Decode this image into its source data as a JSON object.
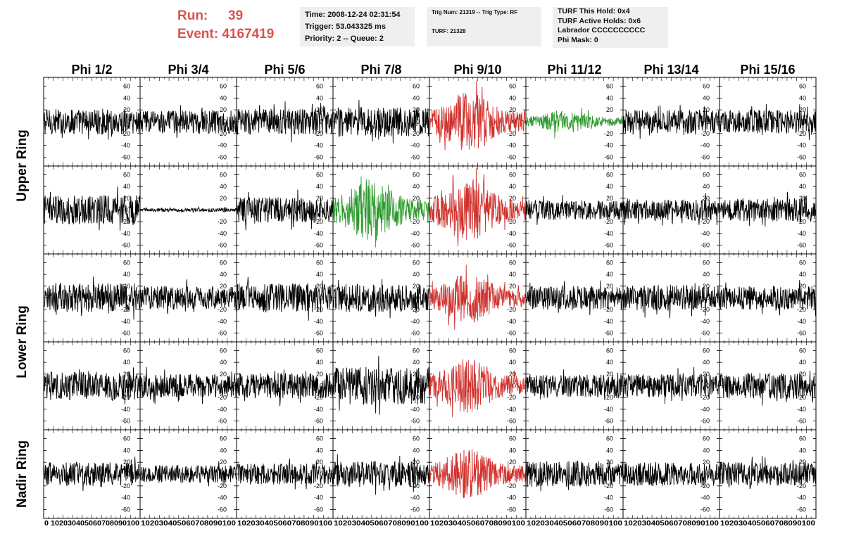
{
  "header": {
    "run_label": "Run:",
    "run_value": "39",
    "event_label": "Event:",
    "event_value": "4167419"
  },
  "info_box_1": {
    "time": "Time: 2008-12-24 02:31:54",
    "trigger": "Trigger: 53.043325 ms",
    "priority": "Priority: 2 -- Queue: 2"
  },
  "info_box_2": {
    "trig": "Trig Num: 21319 -- Trig Type: RF",
    "turf": "TURF: 21328"
  },
  "info_box_3": {
    "this_hold": "TURF This Hold: 0x4",
    "active_holds": "TURF Active Holds: 0x6",
    "labrador": "Labrador CCCCCCCCCC",
    "phi_mask": "Phi Mask: 0"
  },
  "colors": {
    "normal_trace": "#000000",
    "triggered_red": "#d0312d",
    "triggered_green": "#2e9a2e",
    "header_red": "#d9534f",
    "info_bg": "#efefef"
  },
  "chart_data": {
    "type": "line",
    "columns": [
      "Phi 1/2",
      "Phi 3/4",
      "Phi 5/6",
      "Phi 7/8",
      "Phi 9/10",
      "Phi 11/12",
      "Phi 13/14",
      "Phi 15/16"
    ],
    "rows": [
      "Upper Ring",
      "Lower Ring",
      "Nadir Ring"
    ],
    "sub_rows_per_ring": [
      2,
      2,
      1
    ],
    "y_ticks": [
      -60,
      -40,
      -20,
      0,
      20,
      40,
      60
    ],
    "ylim": [
      -75,
      75
    ],
    "x_ticks": [
      0,
      10,
      20,
      30,
      40,
      50,
      60,
      70,
      80,
      90,
      100
    ],
    "xlim": [
      0,
      100
    ],
    "x_tick_labels_panel1": "0 102030405060708090100",
    "x_tick_labels": "102030405060708090100",
    "x_tick_labels_last": "102030405060708090100",
    "grid": false,
    "panels": [
      {
        "row": 0,
        "col": 0,
        "color": "black",
        "amp": 22
      },
      {
        "row": 0,
        "col": 1,
        "color": "black",
        "amp": 20
      },
      {
        "row": 0,
        "col": 2,
        "color": "black",
        "amp": 22
      },
      {
        "row": 0,
        "col": 3,
        "color": "black",
        "amp": 25
      },
      {
        "row": 0,
        "col": 4,
        "color": "red",
        "amp": 38
      },
      {
        "row": 0,
        "col": 5,
        "color": "green",
        "amp": 15
      },
      {
        "row": 0,
        "col": 6,
        "color": "black",
        "amp": 20
      },
      {
        "row": 0,
        "col": 7,
        "color": "black",
        "amp": 20
      },
      {
        "row": 1,
        "col": 0,
        "color": "black",
        "amp": 25
      },
      {
        "row": 1,
        "col": 1,
        "color": "black",
        "amp": 3
      },
      {
        "row": 1,
        "col": 2,
        "color": "black",
        "amp": 22
      },
      {
        "row": 1,
        "col": 3,
        "color": "green",
        "amp": 40
      },
      {
        "row": 1,
        "col": 4,
        "color": "red",
        "amp": 40
      },
      {
        "row": 1,
        "col": 5,
        "color": "black",
        "amp": 17
      },
      {
        "row": 1,
        "col": 6,
        "color": "black",
        "amp": 18
      },
      {
        "row": 1,
        "col": 7,
        "color": "black",
        "amp": 20
      },
      {
        "row": 2,
        "col": 0,
        "color": "black",
        "amp": 25
      },
      {
        "row": 2,
        "col": 1,
        "color": "black",
        "amp": 20
      },
      {
        "row": 2,
        "col": 2,
        "color": "black",
        "amp": 25
      },
      {
        "row": 2,
        "col": 3,
        "color": "black",
        "amp": 24
      },
      {
        "row": 2,
        "col": 4,
        "color": "red",
        "amp": 33
      },
      {
        "row": 2,
        "col": 5,
        "color": "black",
        "amp": 20
      },
      {
        "row": 2,
        "col": 6,
        "color": "black",
        "amp": 22
      },
      {
        "row": 2,
        "col": 7,
        "color": "black",
        "amp": 20
      },
      {
        "row": 3,
        "col": 0,
        "color": "black",
        "amp": 25
      },
      {
        "row": 3,
        "col": 1,
        "color": "black",
        "amp": 20
      },
      {
        "row": 3,
        "col": 2,
        "color": "black",
        "amp": 22
      },
      {
        "row": 3,
        "col": 3,
        "color": "black",
        "amp": 32
      },
      {
        "row": 3,
        "col": 4,
        "color": "red",
        "amp": 36
      },
      {
        "row": 3,
        "col": 5,
        "color": "black",
        "amp": 20
      },
      {
        "row": 3,
        "col": 6,
        "color": "black",
        "amp": 20
      },
      {
        "row": 3,
        "col": 7,
        "color": "black",
        "amp": 22
      },
      {
        "row": 4,
        "col": 0,
        "color": "black",
        "amp": 20
      },
      {
        "row": 4,
        "col": 1,
        "color": "black",
        "amp": 15
      },
      {
        "row": 4,
        "col": 2,
        "color": "black",
        "amp": 18
      },
      {
        "row": 4,
        "col": 3,
        "color": "black",
        "amp": 22
      },
      {
        "row": 4,
        "col": 4,
        "color": "red",
        "amp": 32
      },
      {
        "row": 4,
        "col": 5,
        "color": "black",
        "amp": 22
      },
      {
        "row": 4,
        "col": 6,
        "color": "black",
        "amp": 20
      },
      {
        "row": 4,
        "col": 7,
        "color": "black",
        "amp": 20
      }
    ]
  }
}
